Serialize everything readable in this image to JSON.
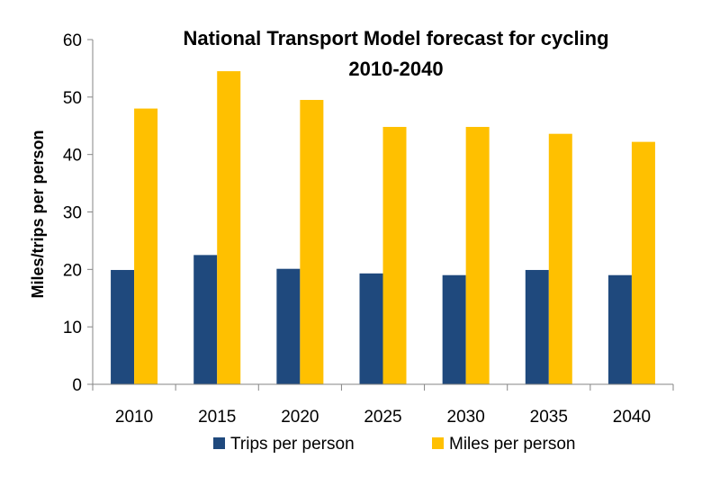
{
  "chart_data": {
    "type": "bar",
    "title_line1": "National Transport Model forecast for cycling",
    "title_line2": "2010-2040",
    "xlabel": "",
    "ylabel": "Miles/trips per person",
    "categories": [
      "2010",
      "2015",
      "2020",
      "2025",
      "2030",
      "2035",
      "2040"
    ],
    "series": [
      {
        "name": "Trips per person",
        "color": "#1F497D",
        "values": [
          19.9,
          22.5,
          20.1,
          19.3,
          19.0,
          19.9,
          19.0
        ]
      },
      {
        "name": "Miles per person",
        "color": "#FFC000",
        "values": [
          48.0,
          54.5,
          49.5,
          44.8,
          44.8,
          43.6,
          42.2
        ]
      }
    ],
    "ylim": [
      0,
      60
    ],
    "yticks": [
      0,
      10,
      20,
      30,
      40,
      50,
      60
    ],
    "grid": false,
    "legend_position": "bottom"
  }
}
